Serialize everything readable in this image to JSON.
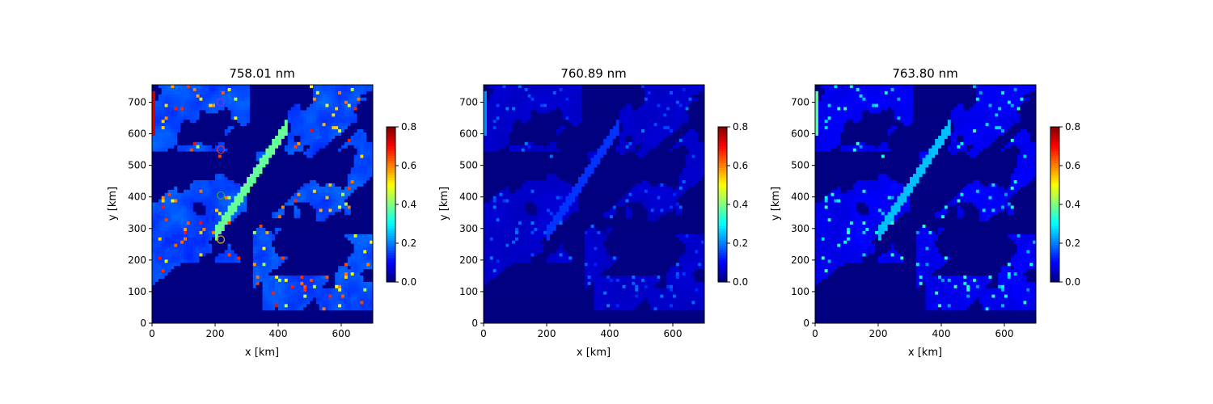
{
  "chart_data": [
    {
      "type": "heatmap",
      "title": "758.01 nm",
      "xlabel": "x [km]",
      "ylabel": "y [km]",
      "xlim": [
        0,
        700
      ],
      "ylim": [
        0,
        755
      ],
      "xticks": [
        "0",
        "200",
        "400",
        "600"
      ],
      "yticks": [
        "0",
        "100",
        "200",
        "300",
        "400",
        "500",
        "600",
        "700"
      ],
      "colormap": "jet",
      "colorbar": {
        "range": [
          0.0,
          0.8
        ],
        "ticks": [
          "0.0",
          "0.2",
          "0.4",
          "0.6",
          "0.8"
        ]
      },
      "field": {
        "background": 0.0,
        "bright_cloud_level": 0.16,
        "streak_level": 0.38,
        "edge_level": 0.7
      },
      "markers": [
        {
          "x": 218,
          "y": 700,
          "color": "#8b2be2"
        },
        {
          "x": 218,
          "y": 550,
          "color": "#e0303a"
        },
        {
          "x": 218,
          "y": 405,
          "color": "#2ca02c"
        },
        {
          "x": 218,
          "y": 265,
          "color": "#c0a030"
        }
      ]
    },
    {
      "type": "heatmap",
      "title": "760.89 nm",
      "xlabel": "x [km]",
      "ylabel": "y [km]",
      "xlim": [
        0,
        700
      ],
      "ylim": [
        0,
        755
      ],
      "xticks": [
        "0",
        "200",
        "400",
        "600"
      ],
      "yticks": [
        "0",
        "100",
        "200",
        "300",
        "400",
        "500",
        "600",
        "700"
      ],
      "colormap": "jet",
      "colorbar": {
        "range": [
          0.0,
          0.8
        ],
        "ticks": [
          "0.0",
          "0.2",
          "0.4",
          "0.6",
          "0.8"
        ]
      },
      "field": {
        "background": 0.0,
        "bright_cloud_level": 0.06,
        "streak_level": 0.14,
        "edge_level": 0.2
      }
    },
    {
      "type": "heatmap",
      "title": "763.80 nm",
      "xlabel": "x [km]",
      "ylabel": "y [km]",
      "xlim": [
        0,
        700
      ],
      "ylim": [
        0,
        755
      ],
      "xticks": [
        "0",
        "200",
        "400",
        "600"
      ],
      "yticks": [
        "0",
        "100",
        "200",
        "300",
        "400",
        "500",
        "600",
        "700"
      ],
      "colormap": "jet",
      "colorbar": {
        "range": [
          0.0,
          0.8
        ],
        "ticks": [
          "0.0",
          "0.2",
          "0.4",
          "0.6",
          "0.8"
        ]
      },
      "field": {
        "background": 0.0,
        "bright_cloud_level": 0.09,
        "streak_level": 0.25,
        "edge_level": 0.35
      }
    }
  ]
}
